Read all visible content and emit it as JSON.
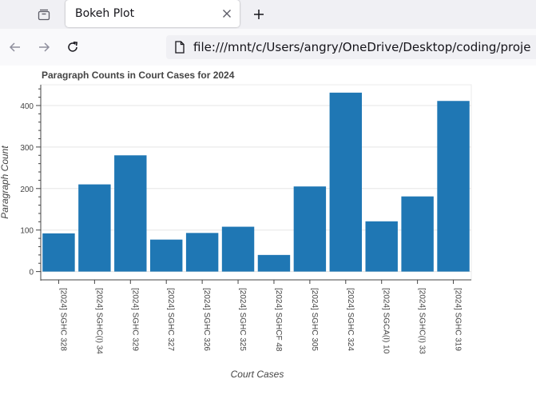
{
  "browser": {
    "tab_title": "Bokeh Plot",
    "url": "file:///mnt/c/Users/angry/OneDrive/Desktop/coding/proje",
    "icons": {
      "tab_list": "tab-list-icon",
      "close": "close-icon",
      "new_tab": "plus-icon",
      "back": "back-arrow-icon",
      "forward": "forward-arrow-icon",
      "reload": "reload-icon",
      "page": "page-icon"
    }
  },
  "chart_data": {
    "type": "bar",
    "title": "Paragraph Counts in Court Cases for 2024",
    "xlabel": "Court Cases",
    "ylabel": "Paragraph Count",
    "categories": [
      "[2024] SGHC 328",
      "[2024] SGHC(I) 34",
      "[2024] SGHC 329",
      "[2024] SGHC 327",
      "[2024] SGHC 326",
      "[2024] SGHC 325",
      "[2024] SGHCF 48",
      "[2024] SGHC 305",
      "[2024] SGHC 324",
      "[2024] SGCA(I) 10",
      "[2024] SGHC(I) 33",
      "[2024] SGHC 319"
    ],
    "values": [
      92,
      210,
      280,
      77,
      93,
      108,
      40,
      205,
      431,
      121,
      181,
      411
    ],
    "ylim": [
      -20,
      450
    ],
    "yticks": [
      0,
      100,
      200,
      300,
      400
    ],
    "yticks_minor": [
      20,
      40,
      60,
      80,
      120,
      140,
      160,
      180,
      220,
      240,
      260,
      280,
      320,
      340,
      360,
      380,
      420,
      440
    ],
    "grid": true,
    "bar_color": "#1f77b4"
  }
}
